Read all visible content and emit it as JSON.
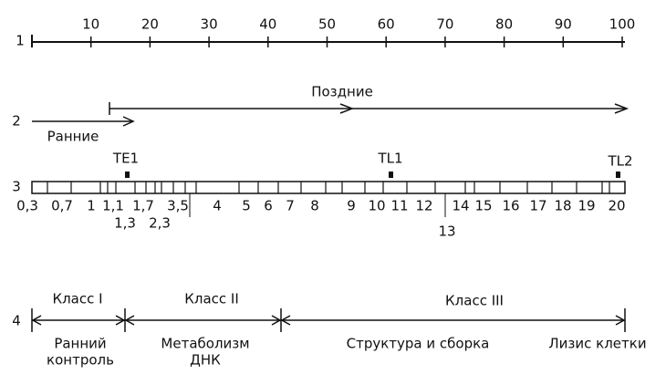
{
  "scale": {
    "label": "1",
    "ticks": [
      10,
      20,
      30,
      40,
      50,
      60,
      70,
      80,
      90,
      100
    ]
  },
  "phases": {
    "label": "2",
    "early": "Ранние",
    "late": "Поздние"
  },
  "genome": {
    "label": "3",
    "markers": [
      "TE1",
      "TL1",
      "TL2"
    ],
    "segments": [
      "0,3",
      "0,7",
      "1",
      "1,1",
      "1,7",
      "3,5",
      "4",
      "5",
      "6",
      "7",
      "8",
      "9",
      "10",
      "11",
      "12",
      "14",
      "15",
      "16",
      "17",
      "18",
      "19",
      "20"
    ],
    "lower_segments": [
      "1,3",
      "2,3",
      "13"
    ]
  },
  "classes": {
    "label": "4",
    "names": [
      "Класс I",
      "Класс II",
      "Класс III"
    ],
    "functions": [
      "Ранний",
      "контроль",
      "Метаболизм",
      "ДНК",
      "Структура и сборка",
      "Лизис клетки"
    ]
  }
}
